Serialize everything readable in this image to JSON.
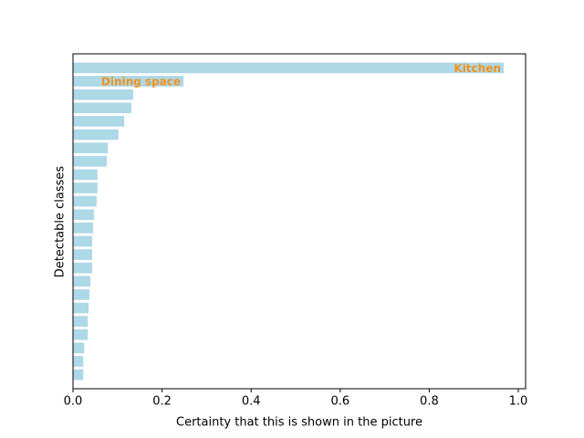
{
  "chart_data": {
    "type": "barh",
    "x_label": "Certainty that this is shown in the picture",
    "y_label": "Detectable classes",
    "categories": [
      "Kitchen",
      "Dining space",
      null,
      null,
      null,
      null,
      null,
      null,
      null,
      null,
      null,
      null,
      null,
      null,
      null,
      null,
      null,
      null,
      null,
      null,
      null,
      null,
      null,
      null
    ],
    "values": [
      0.967,
      0.248,
      0.135,
      0.131,
      0.115,
      0.102,
      0.078,
      0.076,
      0.055,
      0.055,
      0.053,
      0.047,
      0.045,
      0.043,
      0.043,
      0.043,
      0.039,
      0.037,
      0.035,
      0.033,
      0.033,
      0.025,
      0.023,
      0.023
    ],
    "color": "#add8e6",
    "label_color": "#f0921e",
    "xlim": [
      0,
      1.0164
    ],
    "xticks": [
      {
        "value": 0,
        "label": "0.0"
      },
      0.2,
      0.4,
      0.6,
      0.8,
      {
        "value": 1,
        "label": "1.0"
      }
    ]
  }
}
